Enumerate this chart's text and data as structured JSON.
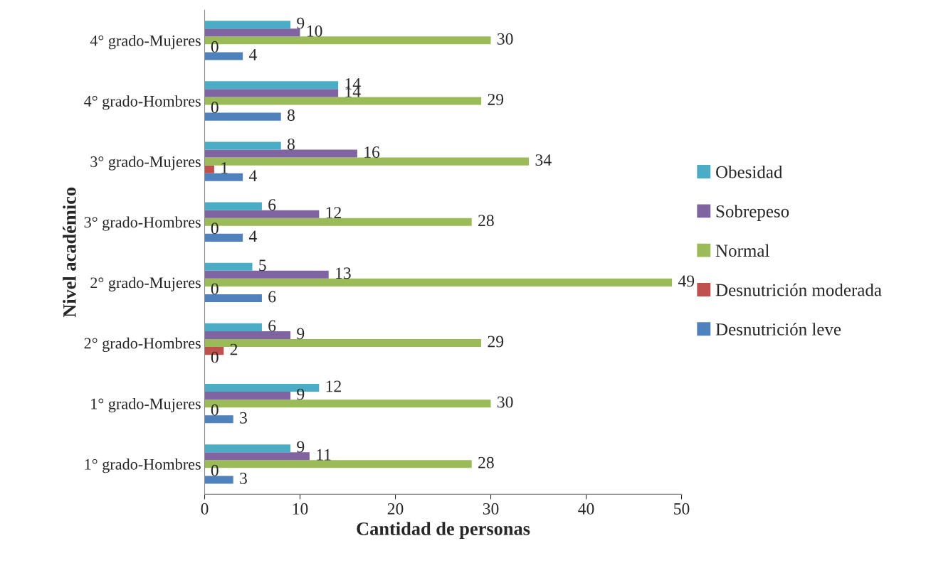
{
  "chart_data": {
    "type": "bar",
    "orientation": "horizontal",
    "xlabel": "Cantidad de personas",
    "ylabel": "Nivel académico",
    "categories": [
      "4° grado-Mujeres",
      "4° grado-Hombres",
      "3° grado-Mujeres",
      "3° grado-Hombres",
      "2° grado-Mujeres",
      "2° grado-Hombres",
      "1° grado-Mujeres",
      "1° grado-Hombres"
    ],
    "series": [
      {
        "name": "Desnutrición leve",
        "color": "#4f81bd",
        "values": [
          4,
          8,
          4,
          4,
          6,
          0,
          3,
          3
        ]
      },
      {
        "name": "Desnutrición moderada",
        "color": "#c0504d",
        "values": [
          0,
          0,
          1,
          0,
          0,
          2,
          0,
          0
        ]
      },
      {
        "name": "Normal",
        "color": "#9bbb59",
        "values": [
          30,
          29,
          34,
          28,
          49,
          29,
          30,
          28
        ]
      },
      {
        "name": "Sobrepeso",
        "color": "#8064a2",
        "values": [
          10,
          14,
          16,
          12,
          13,
          9,
          9,
          11
        ]
      },
      {
        "name": "Obesidad",
        "color": "#4bacc6",
        "values": [
          9,
          14,
          8,
          6,
          5,
          6,
          12,
          9
        ]
      }
    ],
    "xlim": [
      0,
      50
    ],
    "xticks": [
      0,
      10,
      20,
      30,
      40,
      50
    ],
    "grid": false,
    "legend": "right",
    "data_labels": true
  }
}
